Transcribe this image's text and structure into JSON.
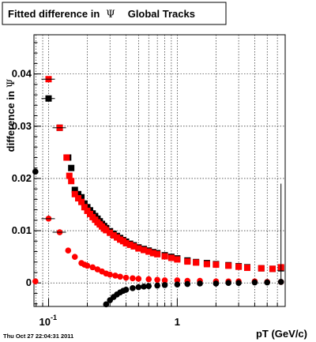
{
  "chart_data": {
    "type": "scatter",
    "title": "Fitted difference in Ψ   Global Tracks",
    "title_prefix": "Fitted difference in",
    "title_symbol": "Ψ",
    "title_suffix": "Global Tracks",
    "xlabel": "pT (GeV/c)",
    "ylabel": "difference in Ψ",
    "ylabel_prefix": "difference in",
    "ylabel_symbol": "Ψ",
    "x_scale": "log",
    "xlim": [
      0.077,
      6.9
    ],
    "ylim": [
      -0.0045,
      0.0475
    ],
    "grid": true,
    "x_ticks": [
      {
        "value": 0.1,
        "base": "10",
        "exp": "-1"
      },
      {
        "value": 1,
        "label": "1"
      }
    ],
    "y_ticks": [
      {
        "value": 0,
        "label": "0"
      },
      {
        "value": 0.01,
        "label": "0.01"
      },
      {
        "value": 0.02,
        "label": "0.02"
      },
      {
        "value": 0.03,
        "label": "0.03"
      },
      {
        "value": 0.04,
        "label": "0.04"
      }
    ],
    "footer": "Thu Oct 27 22:04:31 2011",
    "series": [
      {
        "marker": "square",
        "color": "#000000",
        "points": [
          [
            0.1,
            0.0353
          ],
          [
            0.122,
            0.0297
          ],
          [
            0.142,
            0.024
          ],
          [
            0.15,
            0.022
          ],
          [
            0.16,
            0.0178
          ],
          [
            0.17,
            0.017
          ],
          [
            0.18,
            0.0164
          ],
          [
            0.19,
            0.0152
          ],
          [
            0.2,
            0.0145
          ],
          [
            0.21,
            0.0139
          ],
          [
            0.22,
            0.0133
          ],
          [
            0.23,
            0.0128
          ],
          [
            0.24,
            0.0123
          ],
          [
            0.25,
            0.0118
          ],
          [
            0.26,
            0.0113
          ],
          [
            0.27,
            0.0109
          ],
          [
            0.28,
            0.0105
          ],
          [
            0.3,
            0.0099
          ],
          [
            0.32,
            0.0094
          ],
          [
            0.34,
            0.009
          ],
          [
            0.36,
            0.0086
          ],
          [
            0.38,
            0.0082
          ],
          [
            0.4,
            0.0079
          ],
          [
            0.43,
            0.0075
          ],
          [
            0.46,
            0.0072
          ],
          [
            0.5,
            0.0068
          ],
          [
            0.55,
            0.0065
          ],
          [
            0.6,
            0.0062
          ],
          [
            0.65,
            0.0059
          ],
          [
            0.7,
            0.0057
          ],
          [
            0.8,
            0.0053
          ],
          [
            0.9,
            0.005
          ],
          [
            1.0,
            0.0047
          ],
          [
            1.2,
            0.0043
          ],
          [
            1.4,
            0.004
          ],
          [
            1.7,
            0.0038
          ],
          [
            2.0,
            0.0036
          ],
          [
            2.5,
            0.0034
          ],
          [
            3.0,
            0.0032
          ],
          [
            3.5,
            0.003
          ],
          [
            4.5,
            0.0028
          ],
          [
            5.5,
            0.0027
          ],
          [
            6.4,
            0.0028
          ]
        ]
      },
      {
        "marker": "square",
        "color": "#ff0000",
        "points": [
          [
            0.1,
            0.039
          ],
          [
            0.122,
            0.0297
          ],
          [
            0.138,
            0.024
          ],
          [
            0.145,
            0.0205
          ],
          [
            0.15,
            0.0195
          ],
          [
            0.16,
            0.017
          ],
          [
            0.17,
            0.0162
          ],
          [
            0.18,
            0.0155
          ],
          [
            0.19,
            0.0145
          ],
          [
            0.2,
            0.0138
          ],
          [
            0.21,
            0.0132
          ],
          [
            0.22,
            0.0126
          ],
          [
            0.23,
            0.0121
          ],
          [
            0.24,
            0.0116
          ],
          [
            0.25,
            0.0112
          ],
          [
            0.26,
            0.0108
          ],
          [
            0.27,
            0.0104
          ],
          [
            0.28,
            0.0101
          ],
          [
            0.3,
            0.0096
          ],
          [
            0.32,
            0.0091
          ],
          [
            0.34,
            0.0087
          ],
          [
            0.36,
            0.0083
          ],
          [
            0.38,
            0.008
          ],
          [
            0.4,
            0.0076
          ],
          [
            0.43,
            0.0073
          ],
          [
            0.46,
            0.007
          ],
          [
            0.5,
            0.0066
          ],
          [
            0.55,
            0.0063
          ],
          [
            0.6,
            0.006
          ],
          [
            0.65,
            0.0057
          ],
          [
            0.7,
            0.0055
          ],
          [
            0.8,
            0.0051
          ],
          [
            0.9,
            0.0048
          ],
          [
            1.0,
            0.0045
          ],
          [
            1.2,
            0.0041
          ],
          [
            1.4,
            0.0039
          ],
          [
            1.7,
            0.0036
          ],
          [
            2.0,
            0.0035
          ],
          [
            2.5,
            0.0033
          ],
          [
            3.0,
            0.0031
          ],
          [
            3.5,
            0.0029
          ],
          [
            4.5,
            0.0028
          ],
          [
            5.5,
            0.0027
          ],
          [
            6.4,
            0.003
          ]
        ]
      },
      {
        "marker": "circle",
        "color": "#ff0000",
        "points": [
          [
            0.079,
            0.0003
          ],
          [
            0.1,
            0.0123
          ],
          [
            0.122,
            0.0097
          ],
          [
            0.142,
            0.0062
          ],
          [
            0.16,
            0.005
          ],
          [
            0.18,
            0.0038
          ],
          [
            0.19,
            0.0035
          ],
          [
            0.2,
            0.0033
          ],
          [
            0.22,
            0.003
          ],
          [
            0.24,
            0.0026
          ],
          [
            0.26,
            0.0022
          ],
          [
            0.28,
            0.0018
          ],
          [
            0.3,
            0.0016
          ],
          [
            0.33,
            0.0014
          ],
          [
            0.36,
            0.0012
          ],
          [
            0.4,
            0.001
          ],
          [
            0.45,
            0.0009
          ],
          [
            0.5,
            0.0008
          ],
          [
            0.6,
            0.0007
          ],
          [
            0.7,
            0.0006
          ],
          [
            0.8,
            0.0005
          ],
          [
            1.0,
            0.0005
          ],
          [
            1.2,
            0.0004
          ],
          [
            1.5,
            0.0004
          ],
          [
            2.0,
            0.0003
          ],
          [
            2.5,
            0.0003
          ],
          [
            3.0,
            0.0003
          ],
          [
            4.0,
            0.0003
          ],
          [
            5.0,
            0.0002
          ],
          [
            6.4,
            0.0002
          ]
        ]
      },
      {
        "marker": "circle",
        "color": "#000000",
        "points": [
          [
            0.079,
            0.0213
          ],
          [
            0.28,
            -0.0041
          ],
          [
            0.3,
            -0.0033
          ],
          [
            0.32,
            -0.0027
          ],
          [
            0.34,
            -0.0022
          ],
          [
            0.36,
            -0.0018
          ],
          [
            0.38,
            -0.0015
          ],
          [
            0.4,
            -0.0013
          ],
          [
            0.45,
            -0.001
          ],
          [
            0.5,
            -0.0008
          ],
          [
            0.55,
            -0.0007
          ],
          [
            0.6,
            -0.0006
          ],
          [
            0.7,
            -0.0005
          ],
          [
            0.8,
            -0.0004
          ],
          [
            1.0,
            -0.0003
          ],
          [
            1.2,
            -0.0002
          ],
          [
            1.5,
            -0.0001
          ],
          [
            2.0,
            -0.0001
          ],
          [
            2.5,
            0.0
          ],
          [
            3.0,
            0.0
          ],
          [
            4.0,
            0.0001
          ],
          [
            5.0,
            0.0001
          ],
          [
            6.4,
            0.0002
          ]
        ]
      }
    ]
  }
}
